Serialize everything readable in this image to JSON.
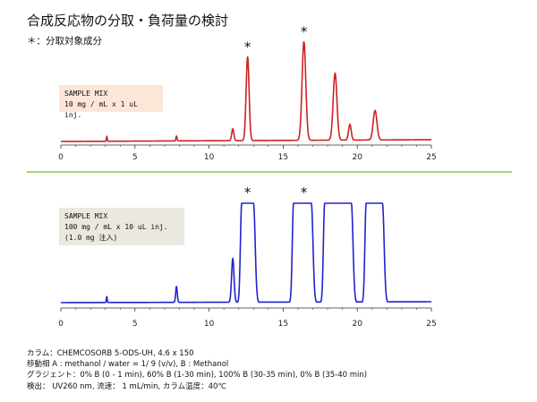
{
  "title": "合成反応物の分取・負荷量の検討",
  "note": "＊：分取対象成分",
  "chart_data": [
    {
      "type": "line",
      "box_lines": [
        "SAMPLE MIX",
        "10 mg / mL x 1 uL inj."
      ],
      "xlim": [
        0,
        25
      ],
      "xticks": [
        0,
        5,
        10,
        15,
        20,
        25
      ],
      "color": "#cc2222",
      "baseline_drift": 0.06,
      "peaks": [
        {
          "t": 3.1,
          "h": 0.05,
          "w": 0.06
        },
        {
          "t": 7.8,
          "h": 0.05,
          "w": 0.08
        },
        {
          "t": 11.6,
          "h": 0.12,
          "w": 0.16
        },
        {
          "t": 12.6,
          "h": 0.85,
          "w": 0.22
        },
        {
          "t": 16.4,
          "h": 1.0,
          "w": 0.28
        },
        {
          "t": 18.5,
          "h": 0.68,
          "w": 0.28
        },
        {
          "t": 19.5,
          "h": 0.16,
          "w": 0.2
        },
        {
          "t": 21.2,
          "h": 0.3,
          "w": 0.28
        }
      ],
      "starred": [
        12.6,
        16.4
      ]
    },
    {
      "type": "line",
      "box_lines": [
        "SAMPLE MIX",
        "100 mg / mL x 10 uL inj.",
        "(1.0 mg 注入)"
      ],
      "xlim": [
        0,
        25
      ],
      "xticks": [
        0,
        5,
        10,
        15,
        20,
        25
      ],
      "color": "#2222cc",
      "baseline_drift": 0.03,
      "saturated_level": 1.0,
      "peaks": [
        {
          "t": 3.1,
          "h": 0.06,
          "w": 0.06
        },
        {
          "t": 7.8,
          "h": 0.16,
          "w": 0.12
        },
        {
          "t": 11.6,
          "h": 0.44,
          "w": 0.18
        },
        {
          "t": 12.5,
          "span": [
            12.2,
            13.0
          ],
          "h": 1.0
        },
        {
          "t": 16.4,
          "span": [
            15.7,
            16.9
          ],
          "h": 1.0
        },
        {
          "t": 18.6,
          "span": [
            17.8,
            19.6
          ],
          "h": 1.0
        },
        {
          "t": 21.1,
          "span": [
            20.6,
            21.7
          ],
          "h": 1.0
        }
      ],
      "starred": [
        12.6,
        16.4
      ]
    }
  ],
  "conditions": [
    "カラム：CHEMCOSORB 5-ODS-UH, 4.6 x 150",
    "移動相 A : methanol / water = 1/ 9 (v/v), B : Methanol",
    "グラジェント：0% B (0 - 1 min), 60% B (1-30 min), 100% B (30-35 min), 0% B (35-40 min)",
    "検出： UV260 nm, 流速： 1 mL/min, カラム温度：40℃"
  ],
  "colors": {
    "divider": "#8dc63f"
  }
}
